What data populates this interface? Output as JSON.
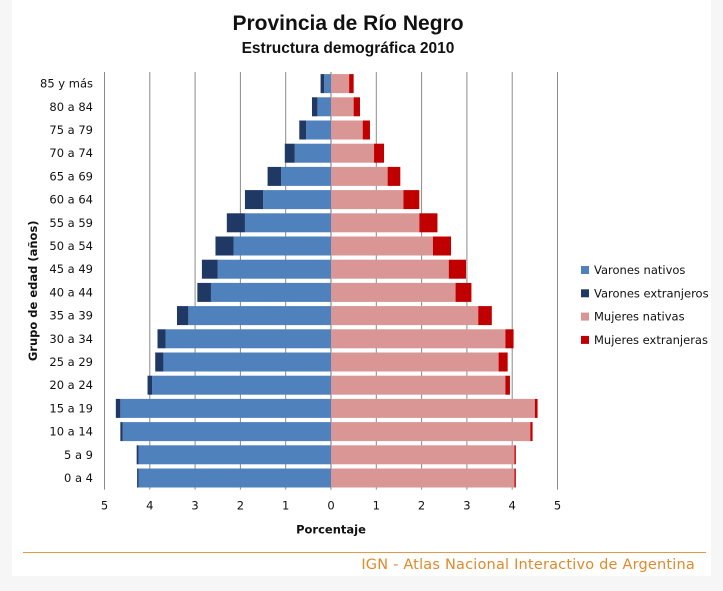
{
  "chart_data": {
    "type": "bar",
    "orientation": "horizontal",
    "title": "Provincia de Río Negro",
    "subtitle": "Estructura demográfica 2010",
    "xlabel": "Porcentaje",
    "ylabel": "Grupo de edad (años)",
    "x_ticks": [
      "5",
      "4",
      "3",
      "2",
      "1",
      "0",
      "1",
      "2",
      "3",
      "4",
      "5"
    ],
    "xlim": [
      -5,
      5
    ],
    "grid": true,
    "legend_position": "right",
    "categories": [
      "0 a 4",
      "5 a 9",
      "10 a 14",
      "15 a 19",
      "20 a 24",
      "25 a 29",
      "30 a 34",
      "35 a 39",
      "40 a 44",
      "45 a 49",
      "50 a 54",
      "55 a 59",
      "60 a 64",
      "65 a 69",
      "70 a 74",
      "75 a 79",
      "80 a 84",
      "85 y más"
    ],
    "series": [
      {
        "name": "Varones nativos",
        "color": "#4f81bd",
        "side": "left",
        "values": [
          4.25,
          4.25,
          4.6,
          4.65,
          3.95,
          3.7,
          3.65,
          3.15,
          2.65,
          2.5,
          2.15,
          1.9,
          1.5,
          1.1,
          0.8,
          0.55,
          0.3,
          0.15
        ]
      },
      {
        "name": "Varones extranjeros",
        "color": "#1f3864",
        "side": "left",
        "values": [
          0.03,
          0.04,
          0.05,
          0.1,
          0.1,
          0.18,
          0.18,
          0.25,
          0.3,
          0.35,
          0.4,
          0.4,
          0.4,
          0.3,
          0.22,
          0.15,
          0.12,
          0.08
        ]
      },
      {
        "name": "Mujeres nativas",
        "color": "#d99694",
        "side": "right",
        "values": [
          4.05,
          4.05,
          4.4,
          4.5,
          3.85,
          3.7,
          3.85,
          3.25,
          2.75,
          2.6,
          2.25,
          1.95,
          1.6,
          1.25,
          0.95,
          0.7,
          0.5,
          0.4
        ]
      },
      {
        "name": "Mujeres extranjeras",
        "color": "#c00000",
        "side": "right",
        "values": [
          0.03,
          0.03,
          0.05,
          0.06,
          0.1,
          0.2,
          0.18,
          0.3,
          0.35,
          0.38,
          0.4,
          0.4,
          0.35,
          0.28,
          0.22,
          0.16,
          0.14,
          0.1
        ]
      }
    ]
  },
  "footer": {
    "credit": "IGN - Atlas Nacional Interactivo de Argentina"
  }
}
